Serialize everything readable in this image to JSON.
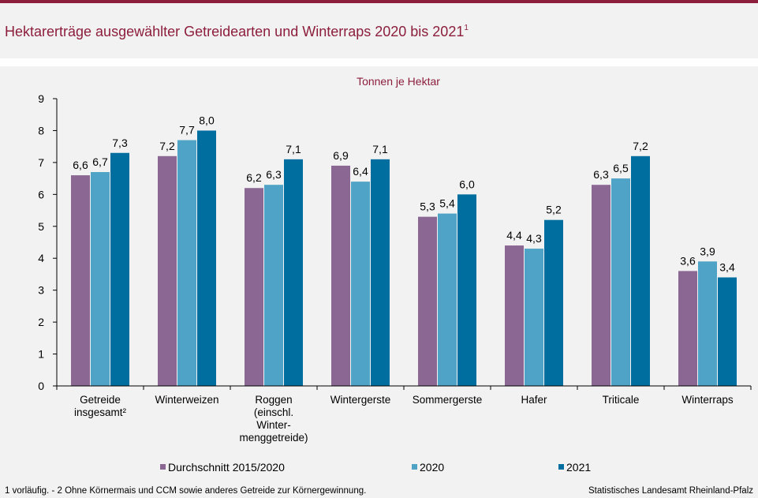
{
  "header": {
    "title": "Hektarerträge ausgewählter Getreidearten und Winterraps 2020 bis 2021",
    "title_sup": "1"
  },
  "chart_data": {
    "type": "bar",
    "unit_label": "Tonnen  je Hektar",
    "ylim": [
      0,
      9
    ],
    "yticks": [
      "0",
      "1",
      "2",
      "3",
      "4",
      "5",
      "6",
      "7",
      "8",
      "9"
    ],
    "categories": [
      [
        "Getreide",
        "insgesamt²"
      ],
      [
        "Winterweizen"
      ],
      [
        "Roggen",
        "(einschl.",
        "Winter-",
        "menggetreide)"
      ],
      [
        "Wintergerste"
      ],
      [
        "Sommergerste"
      ],
      [
        "Hafer"
      ],
      [
        "Triticale"
      ],
      [
        "Winterraps"
      ]
    ],
    "series": [
      {
        "name": "Durchschnitt 2015/2020",
        "color": "#8b6893",
        "values": [
          6.6,
          7.2,
          6.2,
          6.9,
          5.3,
          4.4,
          6.3,
          3.6
        ],
        "labels": [
          "6,6",
          "7,2",
          "6,2",
          "6,9",
          "5,3",
          "4,4",
          "6,3",
          "3,6"
        ]
      },
      {
        "name": "2020",
        "color": "#4fa3c6",
        "values": [
          6.7,
          7.7,
          6.3,
          6.4,
          5.4,
          4.3,
          6.5,
          3.9
        ],
        "labels": [
          "6,7",
          "7,7",
          "6,3",
          "6,4",
          "5,4",
          "4,3",
          "6,5",
          "3,9"
        ]
      },
      {
        "name": "2021",
        "color": "#006fa0",
        "values": [
          7.3,
          8.0,
          7.1,
          7.1,
          6.0,
          5.2,
          7.2,
          3.4
        ],
        "labels": [
          "7,3",
          "8,0",
          "7,1",
          "7,1",
          "6,0",
          "5,2",
          "7,2",
          "3,4"
        ]
      }
    ],
    "grid": false,
    "legend": "bottom"
  },
  "footer": {
    "note": "1 vorläufig.  - 2 Ohne Körnermais und CCM sowie anderes Getreide zur Körnergewinnung.",
    "source": "Statistisches Landesamt Rheinland-Pfalz"
  }
}
